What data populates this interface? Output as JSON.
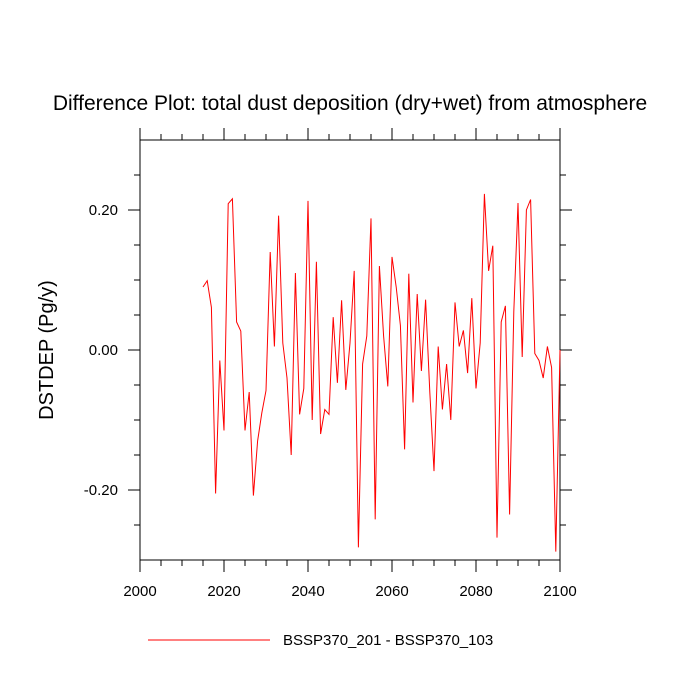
{
  "chart_data": {
    "type": "line",
    "title": "Difference Plot: total dust deposition (dry+wet) from atmosphere",
    "xlabel": "",
    "ylabel": "DSTDEP   (Pg/y)",
    "xlim": [
      2000,
      2100
    ],
    "ylim": [
      -0.3,
      0.3
    ],
    "x_ticks": [
      2000,
      2020,
      2040,
      2060,
      2080,
      2100
    ],
    "x_tick_labels": [
      "2000",
      "2020",
      "2040",
      "2060",
      "2080",
      "2100"
    ],
    "y_ticks": [
      -0.2,
      0.0,
      0.2
    ],
    "y_tick_labels": [
      "-0.20",
      "0.00",
      "0.20"
    ],
    "grid": false,
    "legend_position": "bottom",
    "series": [
      {
        "name": "BSSP370_201 - BSSP370_103",
        "color": "#ff0000",
        "x": [
          2015,
          2016,
          2017,
          2018,
          2019,
          2020,
          2021,
          2022,
          2023,
          2024,
          2025,
          2026,
          2027,
          2028,
          2029,
          2030,
          2031,
          2032,
          2033,
          2034,
          2035,
          2036,
          2037,
          2038,
          2039,
          2040,
          2041,
          2042,
          2043,
          2044,
          2045,
          2046,
          2047,
          2048,
          2049,
          2050,
          2051,
          2052,
          2053,
          2054,
          2055,
          2056,
          2057,
          2058,
          2059,
          2060,
          2061,
          2062,
          2063,
          2064,
          2065,
          2066,
          2067,
          2068,
          2069,
          2070,
          2071,
          2072,
          2073,
          2074,
          2075,
          2076,
          2077,
          2078,
          2079,
          2080,
          2081,
          2082,
          2083,
          2084,
          2085,
          2086,
          2087,
          2088,
          2089,
          2090,
          2091,
          2092,
          2093,
          2094,
          2095,
          2096,
          2097,
          2098,
          2099,
          2100
        ],
        "y": [
          0.09,
          0.099,
          0.061,
          -0.205,
          -0.015,
          -0.115,
          0.209,
          0.216,
          0.04,
          0.027,
          -0.115,
          -0.06,
          -0.208,
          -0.13,
          -0.09,
          -0.058,
          0.14,
          0.005,
          0.192,
          0.01,
          -0.04,
          -0.15,
          0.11,
          -0.092,
          -0.055,
          0.213,
          -0.1,
          0.126,
          -0.12,
          -0.085,
          -0.092,
          0.047,
          -0.047,
          0.071,
          -0.057,
          0.01,
          0.113,
          -0.282,
          -0.02,
          0.02,
          0.188,
          -0.242,
          0.12,
          0.02,
          -0.052,
          0.133,
          0.09,
          0.035,
          -0.142,
          0.109,
          -0.075,
          0.08,
          -0.03,
          0.072,
          -0.06,
          -0.173,
          0.005,
          -0.085,
          -0.02,
          -0.1,
          0.068,
          0.005,
          0.028,
          -0.033,
          0.074,
          -0.055,
          0.01,
          0.223,
          0.113,
          0.149,
          -0.268,
          0.04,
          0.063,
          -0.235,
          0.055,
          0.21,
          -0.01,
          0.2,
          0.215,
          -0.005,
          -0.015,
          -0.04,
          0.005,
          -0.025,
          -0.288,
          0.0
        ]
      }
    ]
  }
}
